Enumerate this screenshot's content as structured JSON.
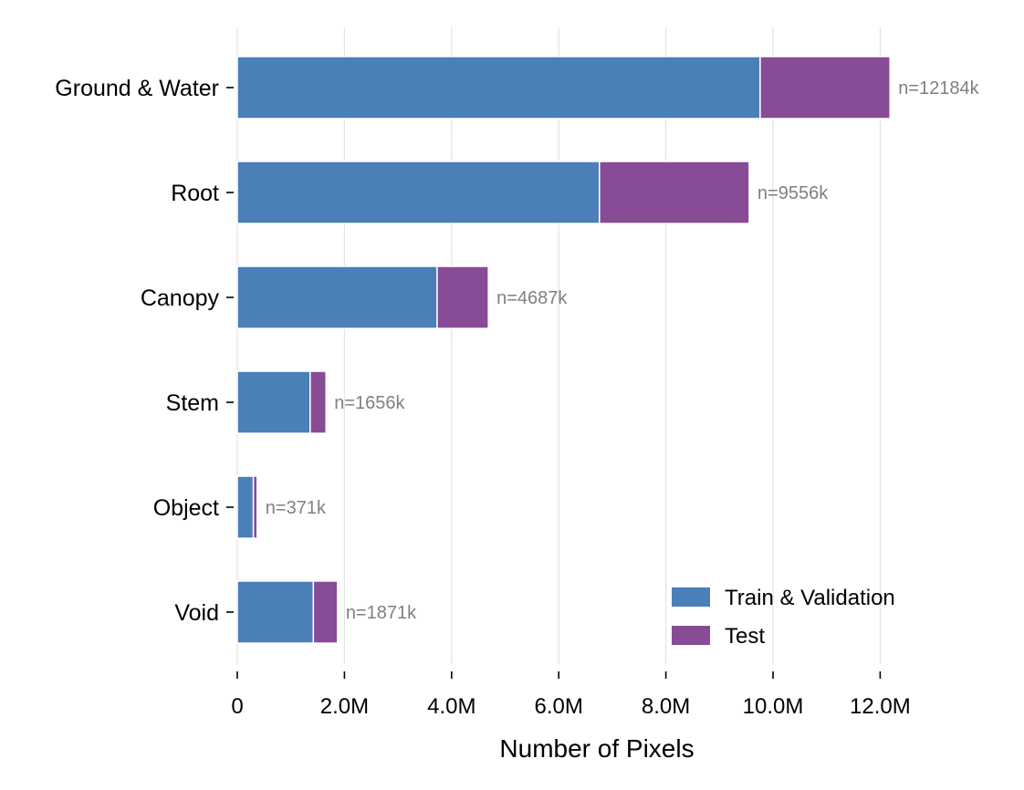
{
  "chart_data": {
    "type": "bar",
    "orientation": "horizontal",
    "stacked": true,
    "categories": [
      "Ground & Water",
      "Root",
      "Canopy",
      "Stem",
      "Object",
      "Void"
    ],
    "series": [
      {
        "name": "Train & Validation",
        "color": "#4a7fb8",
        "values": [
          9760000,
          6760000,
          3730000,
          1360000,
          300000,
          1420000
        ]
      },
      {
        "name": "Test",
        "color": "#884b96",
        "values": [
          2424000,
          2796000,
          957000,
          296000,
          71000,
          451000
        ]
      }
    ],
    "totals_labels": [
      "n=12184k",
      "n=9556k",
      "n=4687k",
      "n=1656k",
      "n=371k",
      "n=1871k"
    ],
    "xlabel": "Number of Pixels",
    "ylabel": "",
    "xlim": [
      0,
      13000000
    ],
    "xticks": [
      0,
      2000000,
      4000000,
      6000000,
      8000000,
      10000000,
      12000000
    ],
    "xtick_labels": [
      "0",
      "2.0M",
      "4.0M",
      "6.0M",
      "8.0M",
      "10.0M",
      "12.0M"
    ],
    "grid": "vertical",
    "legend_position": "lower-right"
  }
}
